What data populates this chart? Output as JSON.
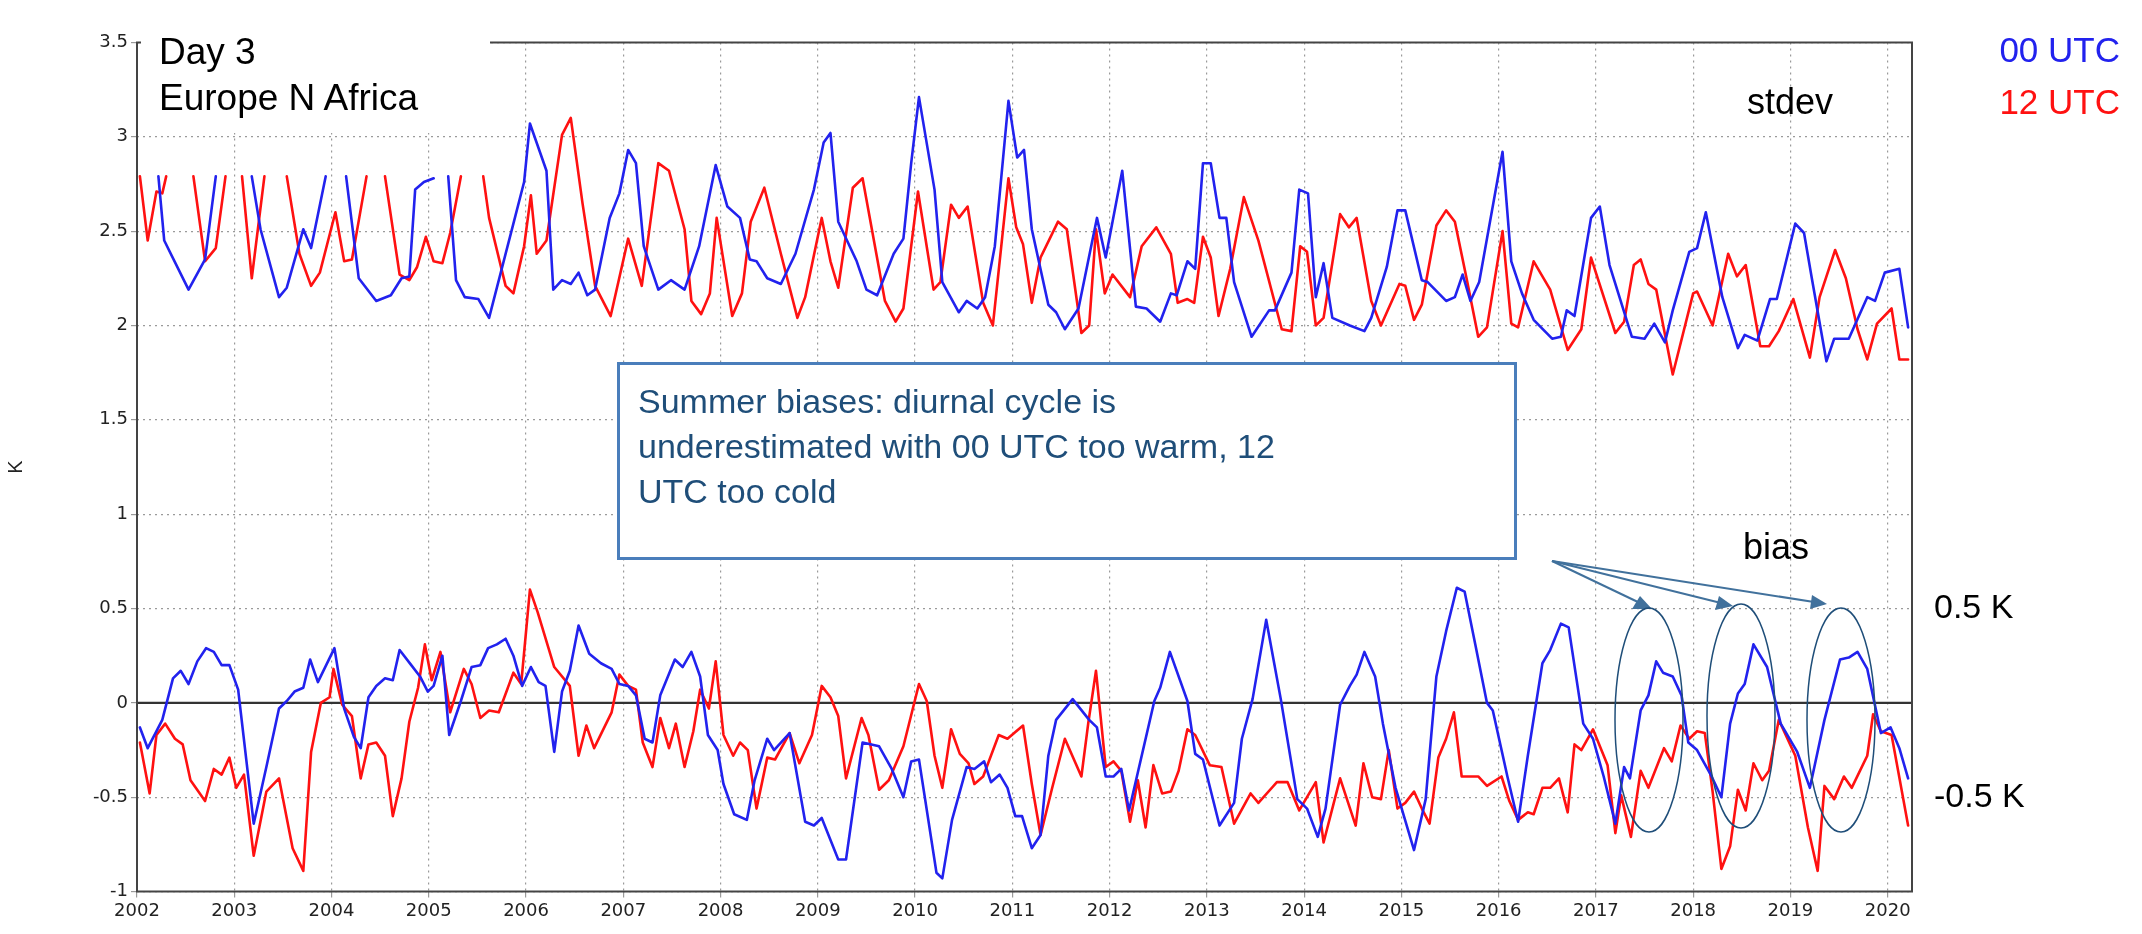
{
  "chart_data": {
    "type": "line",
    "title": "Day 3",
    "subtitle": "Europe N Africa",
    "ylabel": "K",
    "xlim": [
      2002,
      2020.25
    ],
    "xticks": [
      2002,
      2003,
      2004,
      2005,
      2006,
      2007,
      2008,
      2009,
      2010,
      2011,
      2012,
      2013,
      2014,
      2015,
      2016,
      2017,
      2018,
      2019,
      2020
    ],
    "ylim": [
      -1,
      3.5
    ],
    "yticks": [
      -1,
      -0.5,
      0,
      0.5,
      1,
      1.5,
      2,
      2.5,
      3,
      3.5
    ],
    "y2lim": [
      -1,
      3.5
    ],
    "y2ticks": [
      {
        "value": 0.5,
        "label": "0.5 K"
      },
      {
        "value": -0.5,
        "label": "-0.5 K"
      }
    ],
    "grid": true,
    "legend": "top right",
    "marker": "none",
    "line_style": "solid",
    "ref_lines": [
      {
        "axis": "y",
        "value": 0,
        "color": "#333333"
      }
    ],
    "annotations": [
      "Summer biases: diurnal cycle is underestimated with 00 UTC too warm, 12 UTC too cold",
      "stdev",
      "bias"
    ],
    "series": [
      {
        "name": "00 UTC",
        "color": "#2222ee",
        "x": [
          2002.22,
          2002.28,
          2002.53,
          2002.7,
          2002.81,
          2002.95,
          2003.18,
          2003.27,
          2003.46,
          2003.54,
          2003.71,
          2003.79,
          2003.94,
          2004.05,
          2004.15,
          2004.28,
          2004.46,
          2004.61,
          2004.72,
          2004.8,
          2004.86,
          2004.95,
          2005.05,
          2005.12,
          2005.2,
          2005.28,
          2005.37,
          2005.51,
          2005.62,
          2005.87,
          2005.98,
          2006.04,
          2006.21,
          2006.28,
          2006.37,
          2006.46,
          2006.54,
          2006.63,
          2006.71,
          2006.86,
          2006.96,
          2007.05,
          2007.13,
          2007.21,
          2007.36,
          2007.49,
          2007.63,
          2007.78,
          2007.95,
          2008.07,
          2008.2,
          2008.3,
          2008.37,
          2008.48,
          2008.62,
          2008.77,
          2008.96,
          2009.06,
          2009.13,
          2009.21,
          2009.4,
          2009.5,
          2009.61,
          2009.78,
          2009.88,
          2009.96,
          2010.04,
          2010.2,
          2010.28,
          2010.45,
          2010.53,
          2010.64,
          2010.72,
          2010.82,
          2010.96,
          2011.05,
          2011.12,
          2011.2,
          2011.37,
          2011.45,
          2011.54,
          2011.68,
          2011.87,
          2011.96,
          2012.13,
          2012.27,
          2012.38,
          2012.52,
          2012.63,
          2012.69,
          2012.8,
          2012.88,
          2012.96,
          2013.04,
          2013.13,
          2013.2,
          2013.28,
          2013.46,
          2013.64,
          2013.7,
          2013.87,
          2013.95,
          2014.04,
          2014.12,
          2014.2,
          2014.29,
          2014.47,
          2014.62,
          2014.69,
          2014.85,
          2014.96,
          2015.04,
          2015.21,
          2015.27,
          2015.46,
          2015.55,
          2015.63,
          2015.71,
          2015.8,
          2016.04,
          2016.13,
          2016.24,
          2016.36,
          2016.55,
          2016.64,
          2016.7,
          2016.78,
          2016.95,
          2017.04,
          2017.14,
          2017.37,
          2017.5,
          2017.6,
          2017.71,
          2017.79,
          2017.96,
          2018.04,
          2018.13,
          2018.3,
          2018.46,
          2018.53,
          2018.66,
          2018.79,
          2018.86,
          2019.05,
          2019.14,
          2019.22,
          2019.37,
          2019.45,
          2019.6,
          2019.79,
          2019.87,
          2019.97,
          2020.12,
          2020.21
        ],
        "values": [
          2.79,
          2.45,
          2.19,
          2.35,
          2.79,
          null,
          2.79,
          2.51,
          2.15,
          2.2,
          2.51,
          2.41,
          2.79,
          null,
          2.79,
          2.25,
          2.13,
          2.16,
          2.25,
          2.26,
          2.72,
          2.76,
          2.78,
          null,
          2.79,
          2.24,
          2.15,
          2.14,
          2.04,
          2.54,
          2.76,
          3.07,
          2.82,
          2.19,
          2.24,
          2.22,
          2.28,
          2.16,
          2.19,
          2.57,
          2.7,
          2.93,
          2.86,
          2.42,
          2.19,
          2.24,
          2.19,
          2.42,
          2.85,
          2.63,
          2.57,
          2.35,
          2.34,
          2.25,
          2.22,
          2.38,
          2.72,
          2.97,
          3.02,
          2.55,
          2.34,
          2.19,
          2.16,
          2.38,
          2.46,
          2.86,
          3.21,
          2.72,
          2.23,
          2.07,
          2.13,
          2.09,
          2.15,
          2.42,
          3.19,
          2.89,
          2.93,
          2.51,
          2.11,
          2.07,
          1.98,
          2.09,
          2.57,
          2.36,
          2.82,
          2.1,
          2.09,
          2.02,
          2.17,
          2.16,
          2.34,
          2.3,
          2.86,
          2.86,
          2.57,
          2.57,
          2.23,
          1.94,
          2.08,
          2.08,
          2.28,
          2.72,
          2.7,
          2.15,
          2.33,
          2.04,
          2,
          1.97,
          2.04,
          2.31,
          2.61,
          2.61,
          2.24,
          2.23,
          2.13,
          2.15,
          2.27,
          2.13,
          2.23,
          2.92,
          2.34,
          2.17,
          2.03,
          1.93,
          1.94,
          2.08,
          2.05,
          2.57,
          2.63,
          2.32,
          1.94,
          1.93,
          2.01,
          1.91,
          2.08,
          2.39,
          2.41,
          2.6,
          2.15,
          1.88,
          1.95,
          1.92,
          2.14,
          2.14,
          2.54,
          2.49,
          2.25,
          1.81,
          1.93,
          1.93,
          2.15,
          2.13,
          2.28,
          2.3,
          1.99
        ]
      },
      {
        "name": "12 UTC",
        "color": "#ff1111",
        "x": [
          2002.03,
          2002.11,
          2002.2,
          2002.26,
          2002.3,
          2002.45,
          2002.58,
          2002.7,
          2002.81,
          2002.91,
          2003.0,
          2003.08,
          2003.18,
          2003.31,
          2003.4,
          2003.54,
          2003.67,
          2003.79,
          2003.88,
          2004.04,
          2004.13,
          2004.21,
          2004.36,
          2004.45,
          2004.55,
          2004.7,
          2004.8,
          2004.88,
          2004.97,
          2005.05,
          2005.14,
          2005.22,
          2005.33,
          2005.45,
          2005.56,
          2005.62,
          2005.79,
          2005.87,
          2005.98,
          2006.05,
          2006.11,
          2006.21,
          2006.37,
          2006.46,
          2006.58,
          2006.71,
          2006.87,
          2007.05,
          2007.19,
          2007.36,
          2007.47,
          2007.63,
          2007.7,
          2007.8,
          2007.89,
          2007.96,
          2008.12,
          2008.22,
          2008.31,
          2008.45,
          2008.62,
          2008.79,
          2008.87,
          2009.04,
          2009.13,
          2009.21,
          2009.36,
          2009.46,
          2009.69,
          2009.8,
          2009.88,
          2010.03,
          2010.19,
          2010.26,
          2010.37,
          2010.45,
          2010.54,
          2010.7,
          2010.8,
          2010.96,
          2011.04,
          2011.11,
          2011.2,
          2011.29,
          2011.47,
          2011.56,
          2011.71,
          2011.79,
          2011.86,
          2011.95,
          2012.03,
          2012.21,
          2012.33,
          2012.48,
          2012.63,
          2012.7,
          2012.8,
          2012.87,
          2012.96,
          2013.04,
          2013.12,
          2013.24,
          2013.38,
          2013.53,
          2013.77,
          2013.87,
          2013.96,
          2014.03,
          2014.12,
          2014.2,
          2014.37,
          2014.46,
          2014.54,
          2014.69,
          2014.79,
          2014.98,
          2015.04,
          2015.13,
          2015.21,
          2015.36,
          2015.46,
          2015.55,
          2015.67,
          2015.79,
          2015.88,
          2016.04,
          2016.13,
          2016.2,
          2016.36,
          2016.53,
          2016.71,
          2016.85,
          2016.95,
          2017.2,
          2017.29,
          2017.39,
          2017.46,
          2017.54,
          2017.62,
          2017.79,
          2018.0,
          2018.04,
          2018.2,
          2018.36,
          2018.45,
          2018.54,
          2018.69,
          2018.78,
          2018.88,
          2019.03,
          2019.2,
          2019.3,
          2019.46,
          2019.57,
          2019.69,
          2019.79,
          2019.89,
          2020.04,
          2020.12,
          2020.21
        ],
        "values": [
          2.79,
          2.45,
          2.71,
          2.7,
          2.79,
          null,
          2.79,
          2.34,
          2.41,
          2.79,
          null,
          2.79,
          2.25,
          2.79,
          null,
          2.79,
          2.38,
          2.21,
          2.28,
          2.6,
          2.34,
          2.35,
          2.79,
          null,
          2.79,
          2.27,
          2.24,
          2.31,
          2.47,
          2.34,
          2.33,
          2.49,
          2.79,
          null,
          2.79,
          2.57,
          2.21,
          2.17,
          2.42,
          2.69,
          2.38,
          2.45,
          3.01,
          3.1,
          2.65,
          2.21,
          2.05,
          2.46,
          2.21,
          2.86,
          2.82,
          2.51,
          2.13,
          2.06,
          2.17,
          2.57,
          2.05,
          2.17,
          2.55,
          2.73,
          2.38,
          2.04,
          2.15,
          2.57,
          2.34,
          2.2,
          2.73,
          2.78,
          2.13,
          2.02,
          2.09,
          2.71,
          2.19,
          2.23,
          2.64,
          2.57,
          2.63,
          2.12,
          2,
          2.78,
          2.52,
          2.43,
          2.12,
          2.36,
          2.55,
          2.51,
          1.96,
          2,
          2.51,
          2.17,
          2.27,
          2.15,
          2.42,
          2.52,
          2.38,
          2.12,
          2.14,
          2.12,
          2.47,
          2.36,
          2.05,
          2.3,
          2.68,
          2.45,
          1.98,
          1.97,
          2.42,
          2.39,
          2,
          2.04,
          2.59,
          2.52,
          2.57,
          2.13,
          2,
          2.22,
          2.21,
          2.03,
          2.11,
          2.53,
          2.61,
          2.55,
          2.25,
          1.94,
          1.99,
          2.5,
          2.01,
          1.99,
          2.34,
          2.19,
          1.87,
          1.98,
          2.36,
          1.96,
          2.02,
          2.32,
          2.35,
          2.22,
          2.19,
          1.74,
          2.17,
          2.18,
          2,
          2.38,
          2.26,
          2.32,
          1.89,
          1.89,
          1.97,
          2.14,
          1.83,
          2.15,
          2.4,
          2.25,
          1.98,
          1.82,
          2.01,
          2.09,
          1.82,
          1.82
        ]
      },
      {
        "color": "#2222ee",
        "x": [
          2002.03,
          2002.11,
          2002.26,
          2002.37,
          2002.45,
          2002.53,
          2002.62,
          2002.71,
          2002.79,
          2002.87,
          2002.95,
          2003.04,
          2003.2,
          2003.33,
          2003.46,
          2003.54,
          2003.62,
          2003.71,
          2003.78,
          2003.86,
          2004.03,
          2004.13,
          2004.23,
          2004.3,
          2004.38,
          2004.46,
          2004.55,
          2004.63,
          2004.7,
          2004.82,
          2004.91,
          2004.99,
          2005.05,
          2005.14,
          2005.21,
          2005.33,
          2005.44,
          2005.53,
          2005.61,
          2005.7,
          2005.79,
          2005.87,
          2005.96,
          2006.05,
          2006.13,
          2006.2,
          2006.29,
          2006.37,
          2006.45,
          2006.54,
          2006.65,
          2006.77,
          2006.88,
          2006.96,
          2007.05,
          2007.13,
          2007.22,
          2007.3,
          2007.38,
          2007.53,
          2007.61,
          2007.7,
          2007.79,
          2007.87,
          2007.97,
          2008.03,
          2008.14,
          2008.27,
          2008.35,
          2008.48,
          2008.55,
          2008.71,
          2008.87,
          2008.96,
          2009.04,
          2009.21,
          2009.29,
          2009.46,
          2009.63,
          2009.76,
          2009.88,
          2009.96,
          2010.04,
          2010.22,
          2010.28,
          2010.38,
          2010.53,
          2010.61,
          2010.71,
          2010.78,
          2010.87,
          2010.95,
          2011.03,
          2011.1,
          2011.2,
          2011.29,
          2011.37,
          2011.45,
          2011.62,
          2011.79,
          2011.87,
          2011.96,
          2012.04,
          2012.12,
          2012.2,
          2012.46,
          2012.52,
          2012.62,
          2012.8,
          2012.88,
          2012.96,
          2013.13,
          2013.28,
          2013.36,
          2013.47,
          2013.61,
          2013.76,
          2013.93,
          2014.03,
          2014.14,
          2014.22,
          2014.37,
          2014.47,
          2014.54,
          2014.62,
          2014.73,
          2014.81,
          2014.94,
          2015.13,
          2015.25,
          2015.36,
          2015.46,
          2015.57,
          2015.65,
          2015.76,
          2015.88,
          2015.94,
          2016.09,
          2016.2,
          2016.3,
          2016.45,
          2016.53,
          2016.64,
          2016.72,
          2016.87,
          2016.97,
          2017.08,
          2017.2,
          2017.29,
          2017.35,
          2017.46,
          2017.54,
          2017.62,
          2017.69,
          2017.79,
          2017.88,
          2017.95,
          2018.04,
          2018.19,
          2018.29,
          2018.38,
          2018.46,
          2018.53,
          2018.62,
          2018.76,
          2018.9,
          2019.07,
          2019.2,
          2019.35,
          2019.51,
          2019.6,
          2019.69,
          2019.79,
          2019.93,
          2020.03,
          2020.12,
          2020.21
        ],
        "values": [
          -0.13,
          -0.24,
          -0.09,
          0.13,
          0.17,
          0.1,
          0.22,
          0.29,
          0.27,
          0.2,
          0.2,
          0.07,
          -0.64,
          -0.34,
          -0.03,
          0.01,
          0.06,
          0.08,
          0.23,
          0.11,
          0.29,
          -0.03,
          -0.18,
          -0.24,
          0.03,
          0.09,
          0.13,
          0.12,
          0.28,
          0.2,
          0.14,
          0.06,
          0.09,
          0.25,
          -0.17,
          0.01,
          0.19,
          0.2,
          0.29,
          0.31,
          0.34,
          0.25,
          0.09,
          0.19,
          0.11,
          0.09,
          -0.26,
          0.06,
          0.17,
          0.41,
          0.26,
          0.21,
          0.18,
          0.1,
          0.09,
          0.04,
          -0.19,
          -0.21,
          0.04,
          0.23,
          0.19,
          0.27,
          0.14,
          -0.17,
          -0.25,
          -0.43,
          -0.59,
          -0.62,
          -0.41,
          -0.19,
          -0.25,
          -0.16,
          -0.63,
          -0.65,
          -0.61,
          -0.83,
          -0.83,
          -0.21,
          -0.23,
          -0.35,
          -0.5,
          -0.31,
          -0.3,
          -0.9,
          -0.93,
          -0.62,
          -0.34,
          -0.35,
          -0.31,
          -0.42,
          -0.38,
          -0.45,
          -0.6,
          -0.6,
          -0.77,
          -0.7,
          -0.28,
          -0.09,
          0.02,
          -0.09,
          -0.13,
          -0.39,
          -0.39,
          -0.35,
          -0.57,
          0.01,
          0.08,
          0.27,
          0.01,
          -0.27,
          -0.3,
          -0.65,
          -0.53,
          -0.19,
          0.02,
          0.44,
          0.02,
          -0.51,
          -0.56,
          -0.71,
          -0.56,
          -0.01,
          0.09,
          0.15,
          0.27,
          0.14,
          -0.11,
          -0.45,
          -0.78,
          -0.51,
          0.14,
          0.38,
          0.61,
          0.59,
          0.31,
          0,
          -0.04,
          -0.39,
          -0.63,
          -0.28,
          0.21,
          0.28,
          0.42,
          0.4,
          -0.11,
          -0.19,
          -0.39,
          -0.64,
          -0.34,
          -0.4,
          -0.04,
          0.04,
          0.22,
          0.16,
          0.14,
          0.04,
          -0.21,
          -0.25,
          -0.39,
          -0.5,
          -0.11,
          0.05,
          0.1,
          0.31,
          0.19,
          -0.11,
          -0.26,
          -0.45,
          -0.09,
          0.23,
          0.24,
          0.27,
          0.18,
          -0.16,
          -0.13,
          -0.24,
          -0.4
        ]
      },
      {
        "color": "#ff1111",
        "x": [
          2002.03,
          2002.13,
          2002.2,
          2002.29,
          2002.39,
          2002.47,
          2002.55,
          2002.7,
          2002.79,
          2002.87,
          2002.95,
          2003.02,
          2003.1,
          2003.2,
          2003.33,
          2003.46,
          2003.6,
          2003.71,
          2003.79,
          2003.89,
          2003.98,
          2004.02,
          2004.11,
          2004.21,
          2004.3,
          2004.38,
          2004.46,
          2004.55,
          2004.63,
          2004.72,
          2004.8,
          2004.89,
          2004.96,
          2005.03,
          2005.12,
          2005.22,
          2005.36,
          2005.44,
          2005.53,
          2005.62,
          2005.72,
          2005.87,
          2005.95,
          2006.04,
          2006.12,
          2006.29,
          2006.45,
          2006.54,
          2006.62,
          2006.7,
          2006.88,
          2006.96,
          2007.05,
          2007.13,
          2007.2,
          2007.3,
          2007.38,
          2007.47,
          2007.54,
          2007.63,
          2007.72,
          2007.79,
          2007.88,
          2007.95,
          2008.03,
          2008.13,
          2008.2,
          2008.28,
          2008.37,
          2008.48,
          2008.56,
          2008.71,
          2008.81,
          2008.94,
          2009.04,
          2009.13,
          2009.21,
          2009.29,
          2009.45,
          2009.52,
          2009.63,
          2009.73,
          2009.88,
          2010.04,
          2010.12,
          2010.2,
          2010.28,
          2010.37,
          2010.46,
          2010.55,
          2010.61,
          2010.7,
          2010.86,
          2010.95,
          2011.11,
          2011.2,
          2011.29,
          2011.41,
          2011.54,
          2011.71,
          2011.78,
          2011.86,
          2011.96,
          2012.04,
          2012.12,
          2012.21,
          2012.29,
          2012.37,
          2012.45,
          2012.54,
          2012.63,
          2012.71,
          2012.8,
          2012.88,
          2013.03,
          2013.15,
          2013.28,
          2013.45,
          2013.53,
          2013.72,
          2013.83,
          2013.95,
          2014.12,
          2014.2,
          2014.37,
          2014.53,
          2014.61,
          2014.7,
          2014.79,
          2014.87,
          2014.96,
          2015.04,
          2015.13,
          2015.21,
          2015.29,
          2015.38,
          2015.46,
          2015.54,
          2015.62,
          2015.79,
          2015.88,
          2016.03,
          2016.11,
          2016.2,
          2016.3,
          2016.36,
          2016.45,
          2016.53,
          2016.62,
          2016.71,
          2016.78,
          2016.85,
          2016.97,
          2017.12,
          2017.2,
          2017.26,
          2017.36,
          2017.46,
          2017.54,
          2017.7,
          2017.78,
          2017.87,
          2017.96,
          2018.04,
          2018.12,
          2018.2,
          2018.29,
          2018.38,
          2018.46,
          2018.54,
          2018.62,
          2018.71,
          2018.78,
          2018.88,
          2019.05,
          2019.18,
          2019.28,
          2019.35,
          2019.45,
          2019.55,
          2019.63,
          2019.79,
          2019.85,
          2019.93,
          2020.04,
          2020.21
        ],
        "values": [
          -0.21,
          -0.48,
          -0.17,
          -0.11,
          -0.19,
          -0.22,
          -0.41,
          -0.52,
          -0.35,
          -0.38,
          -0.29,
          -0.45,
          -0.38,
          -0.81,
          -0.47,
          -0.4,
          -0.77,
          -0.89,
          -0.26,
          0,
          0.03,
          0.18,
          -0.01,
          -0.07,
          -0.4,
          -0.22,
          -0.21,
          -0.28,
          -0.6,
          -0.4,
          -0.1,
          0.08,
          0.31,
          0.12,
          0.27,
          -0.05,
          0.18,
          0.1,
          -0.08,
          -0.04,
          -0.05,
          0.16,
          0.1,
          0.6,
          0.48,
          0.19,
          0.09,
          -0.28,
          -0.12,
          -0.24,
          -0.05,
          0.15,
          0.09,
          0.07,
          -0.21,
          -0.34,
          -0.08,
          -0.24,
          -0.11,
          -0.34,
          -0.15,
          0.07,
          -0.03,
          0.22,
          -0.17,
          -0.28,
          -0.21,
          -0.25,
          -0.56,
          -0.29,
          -0.3,
          -0.16,
          -0.32,
          -0.17,
          0.09,
          0.03,
          -0.07,
          -0.4,
          -0.08,
          -0.17,
          -0.46,
          -0.41,
          -0.23,
          0.1,
          0.01,
          -0.28,
          -0.45,
          -0.14,
          -0.27,
          -0.32,
          -0.43,
          -0.39,
          -0.17,
          -0.19,
          -0.12,
          -0.43,
          -0.7,
          -0.45,
          -0.19,
          -0.39,
          -0.11,
          0.17,
          -0.34,
          -0.31,
          -0.36,
          -0.63,
          -0.41,
          -0.66,
          -0.33,
          -0.48,
          -0.47,
          -0.36,
          -0.14,
          -0.17,
          -0.33,
          -0.34,
          -0.64,
          -0.48,
          -0.53,
          -0.42,
          -0.42,
          -0.57,
          -0.42,
          -0.74,
          -0.4,
          -0.65,
          -0.32,
          -0.5,
          -0.51,
          -0.25,
          -0.56,
          -0.53,
          -0.47,
          -0.56,
          -0.64,
          -0.29,
          -0.19,
          -0.05,
          -0.39,
          -0.39,
          -0.44,
          -0.39,
          -0.52,
          -0.62,
          -0.58,
          -0.59,
          -0.45,
          -0.45,
          -0.4,
          -0.58,
          -0.22,
          -0.25,
          -0.14,
          -0.33,
          -0.69,
          -0.49,
          -0.71,
          -0.36,
          -0.45,
          -0.24,
          -0.31,
          -0.12,
          -0.19,
          -0.15,
          -0.16,
          -0.47,
          -0.88,
          -0.76,
          -0.46,
          -0.57,
          -0.32,
          -0.41,
          -0.36,
          -0.09,
          -0.28,
          -0.66,
          -0.89,
          -0.44,
          -0.51,
          -0.39,
          -0.45,
          -0.28,
          -0.06,
          -0.15,
          -0.17,
          -0.65
        ]
      }
    ]
  }
}
